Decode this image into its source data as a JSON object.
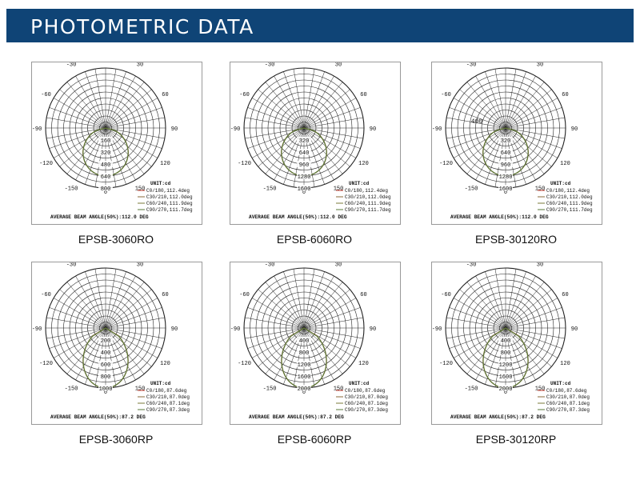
{
  "header": {
    "title": "PHOTOMETRIC DATA"
  },
  "colors": {
    "header_bg": "#0f4476",
    "c0_180": "#c0392b",
    "c90_270": "#5a7a3a"
  },
  "chart_data": [
    {
      "type": "polar",
      "model": "EPSB-3060RO",
      "angle_labels": [
        "-/+180",
        "-150",
        "150",
        "-120",
        "120",
        "-90",
        "90",
        "-60",
        "60",
        "-30",
        "30",
        "0"
      ],
      "radial_labels": [
        "160",
        "320",
        "480",
        "640",
        "800"
      ],
      "r_max": 800,
      "unit": "UNIT:cd",
      "legend": [
        "C0/180,112.4deg",
        "C30/210,112.0deg",
        "C60/240,111.9deg",
        "C90/270,111.7deg"
      ],
      "footer": "AVERAGE BEAM ANGLE(50%):112.0 DEG",
      "annotation": "",
      "beam_angle": 112.0,
      "peak": 640
    },
    {
      "type": "polar",
      "model": "EPSB-6060RO",
      "angle_labels": [
        "-/+180",
        "-150",
        "150",
        "-120",
        "120",
        "-90",
        "90",
        "-60",
        "60",
        "-30",
        "30",
        "0"
      ],
      "radial_labels": [
        "320",
        "640",
        "960",
        "1280",
        "1600"
      ],
      "r_max": 1600,
      "unit": "UNIT:cd",
      "legend": [
        "C0/180,112.4deg",
        "C30/210,112.0deg",
        "C60/240,111.9deg",
        "C90/270,111.7deg"
      ],
      "footer": "AVERAGE BEAM ANGLE(50%):112.0 DEG",
      "annotation": "",
      "beam_angle": 112.0,
      "peak": 1280
    },
    {
      "type": "polar",
      "model": "EPSB-30120RO",
      "angle_labels": [
        "-/+180",
        "-150",
        "150",
        "-120",
        "120",
        "-90",
        "90",
        "-60",
        "60",
        "-30",
        "30",
        "0"
      ],
      "radial_labels": [
        "320",
        "640",
        "960",
        "1280",
        "1600"
      ],
      "r_max": 1600,
      "unit": "UNIT:cd",
      "legend": [
        "C0/180,112.4deg",
        "C30/210,112.0deg",
        "C60/240,111.9deg",
        "C90/270,111.7deg"
      ],
      "footer": "AVERAGE BEAM ANGLE(50%):112.0 DEG",
      "annotation": "400",
      "beam_angle": 112.0,
      "peak": 1280
    },
    {
      "type": "polar",
      "model": "EPSB-3060RP",
      "angle_labels": [
        "-/+180",
        "-150",
        "150",
        "-120",
        "120",
        "-90",
        "90",
        "-60",
        "60",
        "-30",
        "30",
        "0"
      ],
      "radial_labels": [
        "200",
        "400",
        "600",
        "800",
        "1000"
      ],
      "r_max": 1000,
      "unit": "UNIT:cd",
      "legend": [
        "C0/180,87.6deg",
        "C30/210,87.0deg",
        "C60/240,87.1deg",
        "C90/270,87.3deg"
      ],
      "footer": "AVERAGE BEAM ANGLE(50%):87.2 DEG",
      "annotation": "",
      "beam_angle": 87.2,
      "peak": 1000
    },
    {
      "type": "polar",
      "model": "EPSB-6060RP",
      "angle_labels": [
        "-/+180",
        "-150",
        "150",
        "-120",
        "120",
        "-90",
        "90",
        "-60",
        "60",
        "-30",
        "30",
        "0"
      ],
      "radial_labels": [
        "400",
        "800",
        "1200",
        "1600",
        "2000"
      ],
      "r_max": 2000,
      "unit": "UNIT:cd",
      "legend": [
        "C0/180,87.6deg",
        "C30/210,87.0deg",
        "C60/240,87.1deg",
        "C90/270,87.3deg"
      ],
      "footer": "AVERAGE BEAM ANGLE(50%):87.2 DEG",
      "annotation": "",
      "beam_angle": 87.2,
      "peak": 2000
    },
    {
      "type": "polar",
      "model": "EPSB-30120RP",
      "angle_labels": [
        "-/+180",
        "-150",
        "150",
        "-120",
        "120",
        "-90",
        "90",
        "-60",
        "60",
        "-30",
        "30",
        "0"
      ],
      "radial_labels": [
        "400",
        "800",
        "1200",
        "1600",
        "2000"
      ],
      "r_max": 2000,
      "unit": "UNIT:cd",
      "legend": [
        "C0/180,87.6deg",
        "C30/210,87.0deg",
        "C60/240,87.1deg",
        "C90/270,87.3deg"
      ],
      "footer": "AVERAGE BEAM ANGLE(50%):87.2 DEG",
      "annotation": "",
      "beam_angle": 87.2,
      "peak": 2000
    }
  ]
}
